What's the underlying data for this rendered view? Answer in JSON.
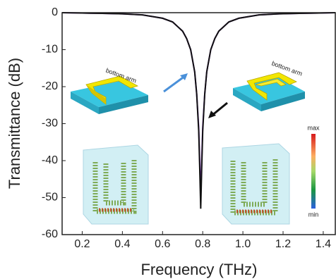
{
  "chart_data": {
    "type": "line",
    "x_label": "Frequency (THz)",
    "y_label": "Transmittance (dB)",
    "x": [
      0.1,
      0.2,
      0.3,
      0.4,
      0.5,
      0.6,
      0.65,
      0.7,
      0.72,
      0.74,
      0.76,
      0.77,
      0.78,
      0.785,
      0.79,
      0.795,
      0.8,
      0.81,
      0.82,
      0.84,
      0.86,
      0.88,
      0.93,
      0.98,
      1.08,
      1.18,
      1.28,
      1.38,
      1.46
    ],
    "series": [
      {
        "color": "#7b2fbe",
        "values": [
          0,
          -0.1,
          -0.2,
          -0.3,
          -0.6,
          -1.5,
          -2.5,
          -5,
          -7,
          -10,
          -16,
          -22,
          -31,
          -40,
          -50,
          -40,
          -31,
          -22,
          -16,
          -10,
          -7,
          -5,
          -2.5,
          -1.5,
          -0.6,
          -0.3,
          -0.2,
          -0.1,
          0
        ]
      },
      {
        "color": "#111111",
        "values": [
          0,
          -0.1,
          -0.2,
          -0.3,
          -0.6,
          -1.5,
          -2.5,
          -5,
          -7,
          -10,
          -16,
          -22,
          -32,
          -42,
          -53,
          -42,
          -32,
          -22,
          -16,
          -10,
          -7,
          -5,
          -2.5,
          -1.5,
          -0.6,
          -0.3,
          -0.2,
          -0.1,
          0
        ]
      }
    ],
    "xlim": [
      0.1,
      1.46
    ],
    "ylim": [
      -60,
      0
    ],
    "xticks": [
      0.2,
      0.4,
      0.6,
      0.8,
      {
        "value": 1.0,
        "label": "1.0"
      },
      1.2,
      1.4
    ],
    "yticks": [
      -60,
      -50,
      -40,
      -30,
      -20,
      -10,
      0
    ],
    "annotations": [
      "bottom arm",
      "bottom arm",
      "max",
      "min"
    ]
  }
}
